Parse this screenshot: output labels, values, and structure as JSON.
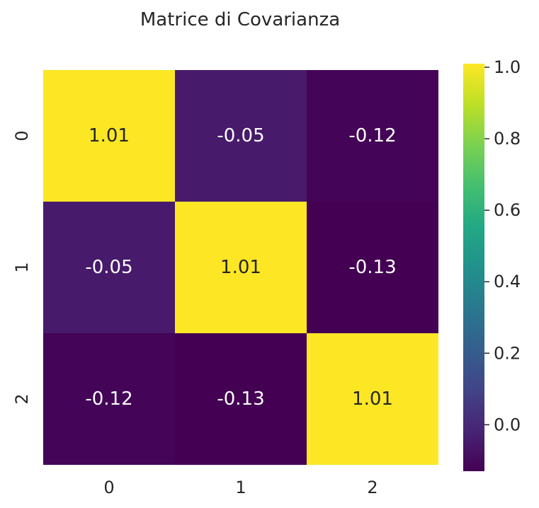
{
  "chart_data": {
    "type": "heatmap",
    "title": "Matrice di Covarianza",
    "xlabel": "",
    "ylabel": "",
    "x_categories": [
      "0",
      "1",
      "2"
    ],
    "y_categories": [
      "0",
      "1",
      "2"
    ],
    "values": [
      [
        1.01,
        -0.05,
        -0.12
      ],
      [
        -0.05,
        1.01,
        -0.13
      ],
      [
        -0.12,
        -0.13,
        1.01
      ]
    ],
    "cell_labels": [
      [
        "1.01",
        "-0.05",
        "-0.12"
      ],
      [
        "-0.05",
        "1.01",
        "-0.13"
      ],
      [
        "-0.12",
        "-0.13",
        "1.01"
      ]
    ],
    "colormap": "viridis",
    "color_range": [
      -0.13,
      1.01
    ],
    "colorbar_ticks": [
      0.0,
      0.2,
      0.4,
      0.6,
      0.8,
      1.0
    ],
    "colorbar_tick_labels": [
      "0.0",
      "0.2",
      "0.4",
      "0.6",
      "0.8",
      "1.0"
    ],
    "colorbar_position": "right",
    "grid": false,
    "annotation_colors": {
      "on_dark": "#ffffff",
      "on_light": "#262626"
    }
  }
}
